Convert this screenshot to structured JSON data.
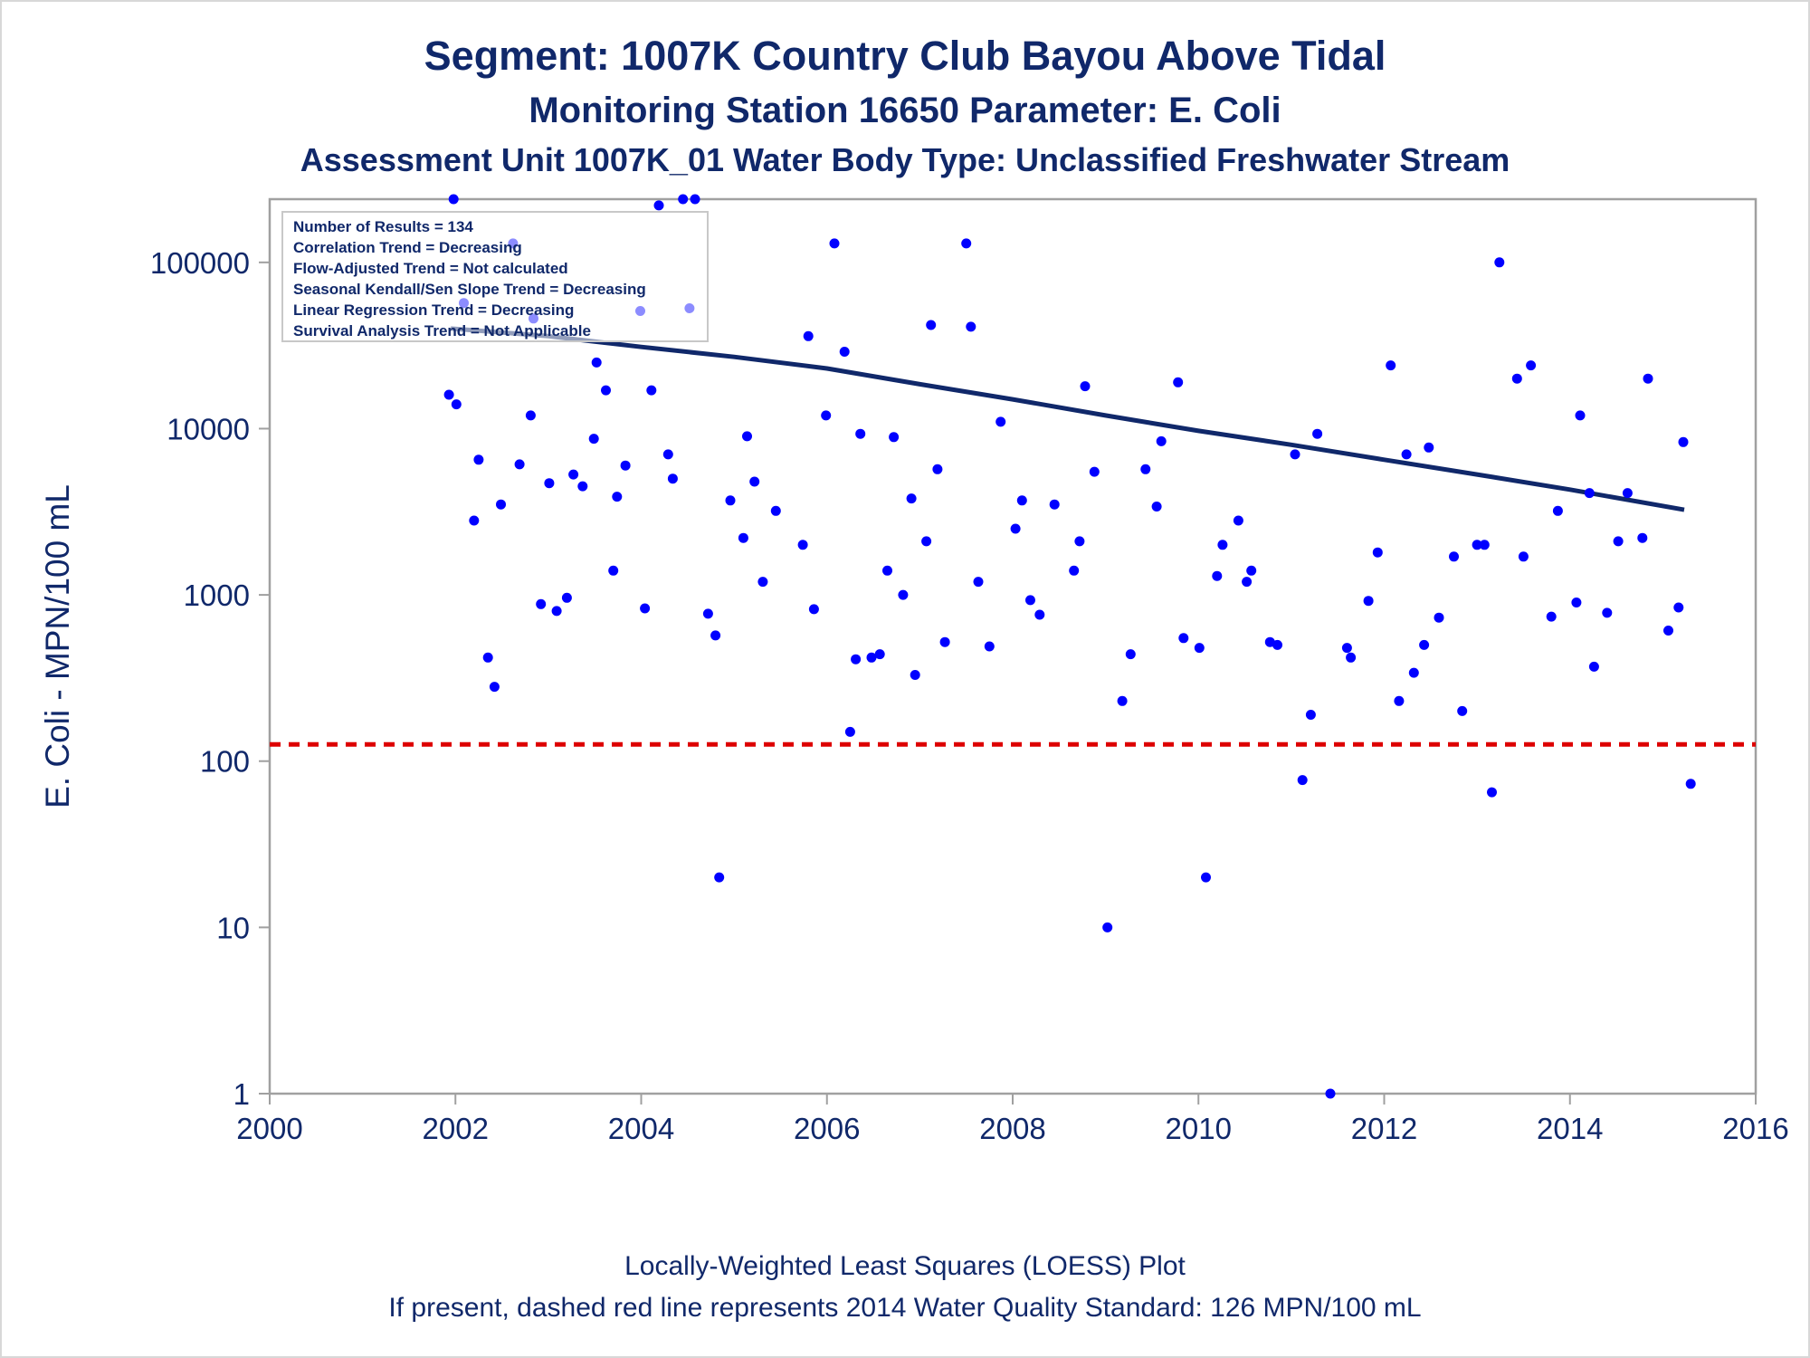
{
  "titles": {
    "line1": "Segment: 1007K  Country Club Bayou Above Tidal",
    "line2": "Monitoring Station 16650 Parameter: E. Coli",
    "line3": "Assessment Unit 1007K_01   Water Body Type: Unclassified Freshwater Stream"
  },
  "footnotes": {
    "line1": "Locally-Weighted Least Squares (LOESS) Plot",
    "line2": "If present, dashed red line represents 2014 Water Quality Standard: 126 MPN/100 mL"
  },
  "stats_box": [
    "Number of Results = 134",
    "Correlation Trend = Decreasing",
    "Flow-Adjusted Trend = Not calculated",
    "Seasonal Kendall/Sen Slope Trend = Decreasing",
    "Linear Regression Trend = Decreasing",
    "Survival Analysis Trend = Not Applicable"
  ],
  "colors": {
    "text": "#10286a",
    "points": "#0000ff",
    "trend_line": "#10286a",
    "standard_line": "#dd0000",
    "frame": "#a0a0a0"
  },
  "chart_data": {
    "type": "scatter",
    "title": "Segment: 1007K  Country Club Bayou Above Tidal",
    "xlabel": "",
    "ylabel": "E. Coli - MPN/100 mL",
    "xlim": [
      2000,
      2016
    ],
    "ylim": [
      1,
      240000
    ],
    "y_scale": "log",
    "x_ticks": [
      "2000",
      "2002",
      "2004",
      "2006",
      "2008",
      "2010",
      "2012",
      "2014",
      "2016"
    ],
    "x_tick_values": [
      2000,
      2002,
      2004,
      2006,
      2008,
      2010,
      2012,
      2014,
      2016
    ],
    "y_ticks": [
      "1",
      "10",
      "100",
      "1000",
      "10000",
      "100000"
    ],
    "y_tick_values": [
      1,
      10,
      100,
      1000,
      10000,
      100000
    ],
    "grid": false,
    "legend": "top-left",
    "series": [
      {
        "type": "scatter",
        "points": [
          [
            2001.93,
            16000
          ],
          [
            2001.98,
            240000
          ],
          [
            2002.01,
            14000
          ],
          [
            2002.09,
            57000
          ],
          [
            2002.2,
            2800
          ],
          [
            2002.25,
            6500
          ],
          [
            2002.35,
            420
          ],
          [
            2002.42,
            280
          ],
          [
            2002.49,
            3500
          ],
          [
            2002.62,
            130000
          ],
          [
            2002.69,
            6100
          ],
          [
            2002.81,
            12000
          ],
          [
            2002.84,
            46000
          ],
          [
            2002.92,
            880
          ],
          [
            2003.01,
            4700
          ],
          [
            2003.09,
            800
          ],
          [
            2003.2,
            960
          ],
          [
            2003.27,
            5300
          ],
          [
            2003.37,
            4500
          ],
          [
            2003.49,
            8700
          ],
          [
            2003.52,
            25000
          ],
          [
            2003.62,
            17000
          ],
          [
            2003.7,
            1400
          ],
          [
            2003.74,
            3900
          ],
          [
            2003.83,
            6000
          ],
          [
            2003.99,
            51000
          ],
          [
            2004.04,
            830
          ],
          [
            2004.11,
            17000
          ],
          [
            2004.19,
            220000
          ],
          [
            2004.29,
            7000
          ],
          [
            2004.34,
            5000
          ],
          [
            2004.45,
            240000
          ],
          [
            2004.52,
            53000
          ],
          [
            2004.58,
            240000
          ],
          [
            2004.72,
            770
          ],
          [
            2004.8,
            570
          ],
          [
            2004.84,
            20
          ],
          [
            2004.96,
            3700
          ],
          [
            2005.1,
            2200
          ],
          [
            2005.14,
            9000
          ],
          [
            2005.22,
            4800
          ],
          [
            2005.31,
            1200
          ],
          [
            2005.45,
            3200
          ],
          [
            2005.74,
            2000
          ],
          [
            2005.8,
            36000
          ],
          [
            2005.86,
            820
          ],
          [
            2005.99,
            12000
          ],
          [
            2006.08,
            130000
          ],
          [
            2006.19,
            29000
          ],
          [
            2006.25,
            150
          ],
          [
            2006.31,
            410
          ],
          [
            2006.36,
            9300
          ],
          [
            2006.48,
            420
          ],
          [
            2006.57,
            440
          ],
          [
            2006.65,
            1400
          ],
          [
            2006.72,
            8900
          ],
          [
            2006.82,
            1000
          ],
          [
            2006.91,
            3800
          ],
          [
            2006.95,
            330
          ],
          [
            2007.07,
            2100
          ],
          [
            2007.12,
            42000
          ],
          [
            2007.19,
            5700
          ],
          [
            2007.27,
            520
          ],
          [
            2007.5,
            130000
          ],
          [
            2007.55,
            41000
          ],
          [
            2007.63,
            1200
          ],
          [
            2007.75,
            490
          ],
          [
            2007.87,
            11000
          ],
          [
            2008.03,
            2500
          ],
          [
            2008.1,
            3700
          ],
          [
            2008.19,
            930
          ],
          [
            2008.29,
            760
          ],
          [
            2008.45,
            3500
          ],
          [
            2008.66,
            1400
          ],
          [
            2008.72,
            2100
          ],
          [
            2008.78,
            18000
          ],
          [
            2008.88,
            5500
          ],
          [
            2009.02,
            10
          ],
          [
            2009.18,
            230
          ],
          [
            2009.27,
            440
          ],
          [
            2009.43,
            5700
          ],
          [
            2009.55,
            3400
          ],
          [
            2009.6,
            8400
          ],
          [
            2009.78,
            19000
          ],
          [
            2009.84,
            550
          ],
          [
            2010.01,
            480
          ],
          [
            2010.08,
            20
          ],
          [
            2010.2,
            1300
          ],
          [
            2010.26,
            2000
          ],
          [
            2010.43,
            2800
          ],
          [
            2010.52,
            1200
          ],
          [
            2010.57,
            1400
          ],
          [
            2010.77,
            520
          ],
          [
            2010.85,
            500
          ],
          [
            2011.04,
            7000
          ],
          [
            2011.12,
            77
          ],
          [
            2011.21,
            190
          ],
          [
            2011.28,
            9300
          ],
          [
            2011.42,
            1
          ],
          [
            2011.6,
            480
          ],
          [
            2011.64,
            420
          ],
          [
            2011.83,
            920
          ],
          [
            2011.93,
            1800
          ],
          [
            2012.07,
            24000
          ],
          [
            2012.16,
            230
          ],
          [
            2012.24,
            7000
          ],
          [
            2012.32,
            340
          ],
          [
            2012.43,
            500
          ],
          [
            2012.48,
            7700
          ],
          [
            2012.59,
            730
          ],
          [
            2012.75,
            1700
          ],
          [
            2012.84,
            200
          ],
          [
            2013.0,
            2000
          ],
          [
            2013.08,
            2000
          ],
          [
            2013.16,
            65
          ],
          [
            2013.24,
            100000
          ],
          [
            2013.43,
            20000
          ],
          [
            2013.5,
            1700
          ],
          [
            2013.58,
            24000
          ],
          [
            2013.8,
            740
          ],
          [
            2013.87,
            3200
          ],
          [
            2014.07,
            900
          ],
          [
            2014.11,
            12000
          ],
          [
            2014.21,
            4100
          ],
          [
            2014.26,
            370
          ],
          [
            2014.4,
            780
          ],
          [
            2014.52,
            2100
          ],
          [
            2014.62,
            4100
          ],
          [
            2014.78,
            2200
          ],
          [
            2014.84,
            20000
          ],
          [
            2015.06,
            610
          ],
          [
            2015.17,
            840
          ],
          [
            2015.22,
            8300
          ],
          [
            2015.3,
            73
          ]
        ]
      },
      {
        "type": "line",
        "points": [
          [
            2001.95,
            40000
          ],
          [
            2003.0,
            36000
          ],
          [
            2004.0,
            31000
          ],
          [
            2005.0,
            27000
          ],
          [
            2006.0,
            23000
          ],
          [
            2007.0,
            18500
          ],
          [
            2008.0,
            15000
          ],
          [
            2009.0,
            12000
          ],
          [
            2010.0,
            9700
          ],
          [
            2011.0,
            8000
          ],
          [
            2012.0,
            6500
          ],
          [
            2013.0,
            5300
          ],
          [
            2014.0,
            4300
          ],
          [
            2015.23,
            3250
          ]
        ]
      },
      {
        "type": "reference_line",
        "y": 126
      }
    ]
  }
}
